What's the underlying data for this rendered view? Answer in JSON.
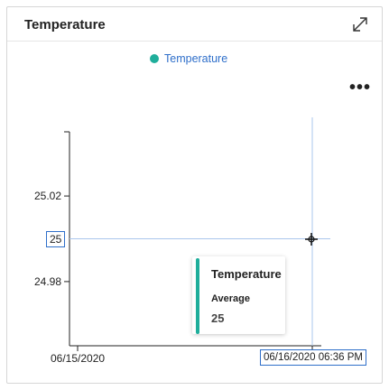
{
  "card": {
    "title": "Temperature",
    "expand_icon": "expand-diagonal-icon",
    "more_icon": "more-horizontal-icon",
    "more_label": "•••"
  },
  "legend": {
    "label": "Temperature",
    "color": "#1fae9b"
  },
  "chart_data": {
    "type": "line",
    "title": "",
    "xlabel": "",
    "ylabel": "",
    "series": [
      {
        "name": "Temperature",
        "values": [
          25,
          25
        ]
      }
    ],
    "x": [
      "06/15/2020",
      "06/16/2020 06:36 PM"
    ],
    "y_ticks": [
      {
        "value": 25.02,
        "label": "25.02"
      },
      {
        "value": 24.98,
        "label": "24.98"
      }
    ],
    "ylim": [
      24.95,
      25.05
    ],
    "x_ticks": [
      {
        "label": "06/15/2020"
      }
    ],
    "grid": false
  },
  "hover": {
    "y_label": "25",
    "x_label": "06/16/2020 06:36 PM",
    "crosshair_color": "#aac7ec"
  },
  "tooltip": {
    "title": "Temperature",
    "aggregation": "Average",
    "value": "25",
    "accent": "#1fae9b"
  }
}
